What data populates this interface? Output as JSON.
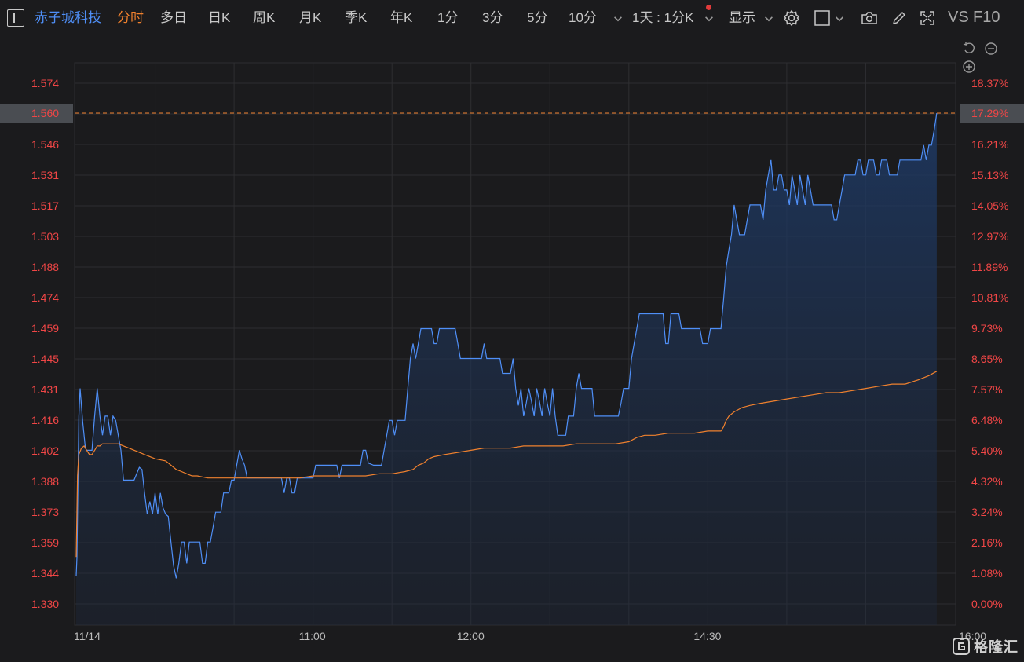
{
  "toolbar": {
    "stock_name": "赤子城科技",
    "active_tab": "分时",
    "tabs": [
      "多日",
      "日K",
      "周K",
      "月K",
      "季K",
      "年K",
      "1分",
      "3分",
      "5分",
      "10分"
    ],
    "period_select": "1天 : 1分K",
    "display_label": "显示",
    "vs_label": "VS",
    "f10_label": "F10"
  },
  "watermark": "格隆汇",
  "colors": {
    "background": "#1b1b1d",
    "price_line": "#4f8ff7",
    "avg_line": "#f0812e",
    "axis_text": "#f04646",
    "grid": "#2e2e31"
  },
  "chart_data": {
    "type": "line",
    "date": "11/14",
    "price_axis": [
      "1.574",
      "1.560",
      "1.546",
      "1.531",
      "1.517",
      "1.503",
      "1.488",
      "1.474",
      "1.459",
      "1.445",
      "1.431",
      "1.416",
      "1.402",
      "1.388",
      "1.373",
      "1.359",
      "1.344",
      "1.330"
    ],
    "pct_axis": [
      "18.37%",
      "17.29%",
      "16.21%",
      "15.13%",
      "14.05%",
      "12.97%",
      "11.89%",
      "10.81%",
      "9.73%",
      "8.65%",
      "7.57%",
      "6.48%",
      "5.40%",
      "4.32%",
      "3.24%",
      "2.16%",
      "1.08%",
      "0.00%"
    ],
    "ylim": [
      1.33,
      1.574
    ],
    "time_labels": [
      {
        "t": 0,
        "label": "11/14"
      },
      {
        "t": 90,
        "label": "11:00"
      },
      {
        "t": 150,
        "label": "12:00"
      },
      {
        "t": 240,
        "label": "14:30"
      },
      {
        "t": 330,
        "label": "16:00"
      }
    ],
    "last_price": "1.560",
    "last_pct": "17.29%",
    "total_minutes": 330,
    "price_series": [
      [
        0,
        1.343
      ],
      [
        0.3,
        1.352
      ],
      [
        1,
        1.418
      ],
      [
        1.5,
        1.431
      ],
      [
        2.5,
        1.415
      ],
      [
        3.5,
        1.403
      ],
      [
        4,
        1.402
      ],
      [
        5,
        1.402
      ],
      [
        6,
        1.402
      ],
      [
        7,
        1.418
      ],
      [
        8,
        1.431
      ],
      [
        9,
        1.418
      ],
      [
        10,
        1.409
      ],
      [
        11,
        1.418
      ],
      [
        12,
        1.418
      ],
      [
        13,
        1.409
      ],
      [
        14,
        1.418
      ],
      [
        15,
        1.416
      ],
      [
        16,
        1.409
      ],
      [
        17,
        1.402
      ],
      [
        18,
        1.388
      ],
      [
        20,
        1.388
      ],
      [
        22,
        1.388
      ],
      [
        24,
        1.394
      ],
      [
        25,
        1.393
      ],
      [
        26,
        1.382
      ],
      [
        27,
        1.372
      ],
      [
        28,
        1.378
      ],
      [
        29,
        1.372
      ],
      [
        30,
        1.382
      ],
      [
        31,
        1.372
      ],
      [
        32,
        1.382
      ],
      [
        33,
        1.375
      ],
      [
        34,
        1.372
      ],
      [
        35,
        1.371
      ],
      [
        36,
        1.359
      ],
      [
        37,
        1.348
      ],
      [
        38,
        1.342
      ],
      [
        39,
        1.349
      ],
      [
        40,
        1.359
      ],
      [
        41,
        1.359
      ],
      [
        42,
        1.349
      ],
      [
        43,
        1.359
      ],
      [
        44,
        1.359
      ],
      [
        45,
        1.359
      ],
      [
        46,
        1.359
      ],
      [
        47,
        1.359
      ],
      [
        48,
        1.349
      ],
      [
        49,
        1.349
      ],
      [
        50,
        1.359
      ],
      [
        51,
        1.359
      ],
      [
        52,
        1.366
      ],
      [
        53,
        1.373
      ],
      [
        54,
        1.373
      ],
      [
        55,
        1.373
      ],
      [
        56,
        1.382
      ],
      [
        57,
        1.382
      ],
      [
        58,
        1.382
      ],
      [
        59,
        1.388
      ],
      [
        60,
        1.388
      ],
      [
        61,
        1.395
      ],
      [
        62,
        1.402
      ],
      [
        63,
        1.398
      ],
      [
        64,
        1.395
      ],
      [
        65,
        1.389
      ],
      [
        70,
        1.389
      ],
      [
        75,
        1.389
      ],
      [
        78,
        1.389
      ],
      [
        79,
        1.382
      ],
      [
        80,
        1.389
      ],
      [
        81,
        1.389
      ],
      [
        82,
        1.382
      ],
      [
        83,
        1.382
      ],
      [
        84,
        1.389
      ],
      [
        86,
        1.389
      ],
      [
        88,
        1.389
      ],
      [
        90,
        1.389
      ],
      [
        91,
        1.395
      ],
      [
        92,
        1.395
      ],
      [
        95,
        1.395
      ],
      [
        96,
        1.395
      ],
      [
        99,
        1.395
      ],
      [
        100,
        1.389
      ],
      [
        101,
        1.395
      ],
      [
        104,
        1.395
      ],
      [
        105,
        1.395
      ],
      [
        108,
        1.395
      ],
      [
        109,
        1.402
      ],
      [
        110,
        1.402
      ],
      [
        111,
        1.396
      ],
      [
        113,
        1.395
      ],
      [
        116,
        1.395
      ],
      [
        117,
        1.402
      ],
      [
        118,
        1.409
      ],
      [
        119,
        1.416
      ],
      [
        120,
        1.416
      ],
      [
        121,
        1.409
      ],
      [
        122,
        1.416
      ],
      [
        123,
        1.416
      ],
      [
        124,
        1.416
      ],
      [
        125,
        1.416
      ],
      [
        126,
        1.431
      ],
      [
        127,
        1.445
      ],
      [
        128,
        1.452
      ],
      [
        129,
        1.445
      ],
      [
        130,
        1.452
      ],
      [
        131,
        1.459
      ],
      [
        132,
        1.459
      ],
      [
        133,
        1.459
      ],
      [
        134,
        1.459
      ],
      [
        135,
        1.459
      ],
      [
        136,
        1.452
      ],
      [
        137,
        1.452
      ],
      [
        138,
        1.459
      ],
      [
        139,
        1.459
      ],
      [
        140,
        1.459
      ],
      [
        141,
        1.459
      ],
      [
        142,
        1.459
      ],
      [
        143,
        1.459
      ],
      [
        144,
        1.459
      ],
      [
        145,
        1.452
      ],
      [
        146,
        1.445
      ],
      [
        147,
        1.445
      ],
      [
        148,
        1.445
      ],
      [
        149,
        1.445
      ],
      [
        150,
        1.445
      ],
      [
        151,
        1.445
      ],
      [
        152,
        1.445
      ],
      [
        153,
        1.445
      ],
      [
        154,
        1.445
      ],
      [
        155,
        1.452
      ],
      [
        156,
        1.445
      ],
      [
        157,
        1.445
      ],
      [
        158,
        1.445
      ],
      [
        159,
        1.445
      ],
      [
        160,
        1.445
      ],
      [
        161,
        1.445
      ],
      [
        162,
        1.438
      ],
      [
        163,
        1.438
      ],
      [
        164,
        1.438
      ],
      [
        165,
        1.438
      ],
      [
        166,
        1.445
      ],
      [
        167,
        1.431
      ],
      [
        168,
        1.423
      ],
      [
        169,
        1.431
      ],
      [
        170,
        1.418
      ],
      [
        171,
        1.424
      ],
      [
        172,
        1.431
      ],
      [
        173,
        1.425
      ],
      [
        174,
        1.418
      ],
      [
        175,
        1.431
      ],
      [
        176,
        1.425
      ],
      [
        177,
        1.418
      ],
      [
        178,
        1.431
      ],
      [
        179,
        1.424
      ],
      [
        180,
        1.418
      ],
      [
        181,
        1.431
      ],
      [
        182,
        1.418
      ],
      [
        183,
        1.409
      ],
      [
        184,
        1.409
      ],
      [
        185,
        1.409
      ],
      [
        186,
        1.409
      ],
      [
        187,
        1.418
      ],
      [
        188,
        1.418
      ],
      [
        189,
        1.418
      ],
      [
        190,
        1.431
      ],
      [
        191,
        1.438
      ],
      [
        192,
        1.431
      ],
      [
        193,
        1.431
      ],
      [
        194,
        1.431
      ],
      [
        195,
        1.431
      ],
      [
        196,
        1.431
      ],
      [
        197,
        1.418
      ],
      [
        198,
        1.418
      ],
      [
        199,
        1.418
      ],
      [
        200,
        1.418
      ],
      [
        201,
        1.418
      ],
      [
        202,
        1.418
      ],
      [
        203,
        1.418
      ],
      [
        204,
        1.418
      ],
      [
        205,
        1.418
      ],
      [
        206,
        1.418
      ],
      [
        207,
        1.424
      ],
      [
        208,
        1.431
      ],
      [
        209,
        1.431
      ],
      [
        210,
        1.431
      ],
      [
        211,
        1.445
      ],
      [
        212,
        1.452
      ],
      [
        213,
        1.459
      ],
      [
        214,
        1.466
      ],
      [
        215,
        1.466
      ],
      [
        216,
        1.466
      ],
      [
        217,
        1.466
      ],
      [
        218,
        1.466
      ],
      [
        219,
        1.466
      ],
      [
        220,
        1.466
      ],
      [
        221,
        1.466
      ],
      [
        222,
        1.466
      ],
      [
        223,
        1.466
      ],
      [
        224,
        1.452
      ],
      [
        225,
        1.452
      ],
      [
        226,
        1.466
      ],
      [
        227,
        1.466
      ],
      [
        228,
        1.466
      ],
      [
        229,
        1.466
      ],
      [
        230,
        1.459
      ],
      [
        231,
        1.459
      ],
      [
        232,
        1.459
      ],
      [
        233,
        1.459
      ],
      [
        234,
        1.459
      ],
      [
        235,
        1.459
      ],
      [
        236,
        1.459
      ],
      [
        237,
        1.459
      ],
      [
        238,
        1.452
      ],
      [
        239,
        1.452
      ],
      [
        240,
        1.452
      ],
      [
        241,
        1.459
      ],
      [
        242,
        1.459
      ],
      [
        243,
        1.459
      ],
      [
        244,
        1.459
      ],
      [
        245,
        1.459
      ],
      [
        246,
        1.473
      ],
      [
        247,
        1.488
      ],
      [
        248,
        1.496
      ],
      [
        249,
        1.503
      ],
      [
        250,
        1.517
      ],
      [
        251,
        1.51
      ],
      [
        252,
        1.503
      ],
      [
        253,
        1.503
      ],
      [
        254,
        1.503
      ],
      [
        255,
        1.51
      ],
      [
        256,
        1.517
      ],
      [
        257,
        1.517
      ],
      [
        258,
        1.517
      ],
      [
        259,
        1.517
      ],
      [
        260,
        1.517
      ],
      [
        261,
        1.51
      ],
      [
        262,
        1.524
      ],
      [
        263,
        1.531
      ],
      [
        264,
        1.538
      ],
      [
        265,
        1.524
      ],
      [
        266,
        1.524
      ],
      [
        267,
        1.531
      ],
      [
        268,
        1.531
      ],
      [
        269,
        1.524
      ],
      [
        270,
        1.524
      ],
      [
        271,
        1.517
      ],
      [
        272,
        1.531
      ],
      [
        273,
        1.524
      ],
      [
        274,
        1.517
      ],
      [
        275,
        1.531
      ],
      [
        276,
        1.524
      ],
      [
        277,
        1.517
      ],
      [
        278,
        1.531
      ],
      [
        279,
        1.524
      ],
      [
        280,
        1.517
      ],
      [
        281,
        1.517
      ],
      [
        282,
        1.517
      ],
      [
        283,
        1.517
      ],
      [
        284,
        1.517
      ],
      [
        285,
        1.517
      ],
      [
        286,
        1.517
      ],
      [
        287,
        1.517
      ],
      [
        288,
        1.51
      ],
      [
        289,
        1.51
      ],
      [
        290,
        1.517
      ],
      [
        291,
        1.524
      ],
      [
        292,
        1.531
      ],
      [
        293,
        1.531
      ],
      [
        294,
        1.531
      ],
      [
        295,
        1.531
      ],
      [
        296,
        1.531
      ],
      [
        297,
        1.538
      ],
      [
        298,
        1.538
      ],
      [
        299,
        1.531
      ],
      [
        300,
        1.531
      ],
      [
        301,
        1.538
      ],
      [
        302,
        1.538
      ],
      [
        303,
        1.538
      ],
      [
        304,
        1.531
      ],
      [
        305,
        1.531
      ],
      [
        306,
        1.538
      ],
      [
        307,
        1.538
      ],
      [
        308,
        1.538
      ],
      [
        309,
        1.531
      ],
      [
        310,
        1.531
      ],
      [
        311,
        1.531
      ],
      [
        312,
        1.531
      ],
      [
        313,
        1.538
      ],
      [
        314,
        1.538
      ],
      [
        315,
        1.538
      ],
      [
        316,
        1.538
      ],
      [
        317,
        1.538
      ],
      [
        318,
        1.538
      ],
      [
        319,
        1.538
      ],
      [
        320,
        1.538
      ],
      [
        321,
        1.538
      ],
      [
        322,
        1.545
      ],
      [
        323,
        1.538
      ],
      [
        324,
        1.545
      ],
      [
        325,
        1.545
      ],
      [
        326,
        1.552
      ],
      [
        327,
        1.56
      ]
    ],
    "avg_series": [
      [
        0,
        1.352
      ],
      [
        0.5,
        1.39
      ],
      [
        1,
        1.4
      ],
      [
        2,
        1.403
      ],
      [
        3,
        1.404
      ],
      [
        4,
        1.402
      ],
      [
        5,
        1.4
      ],
      [
        6,
        1.4
      ],
      [
        7,
        1.402
      ],
      [
        8,
        1.404
      ],
      [
        9,
        1.404
      ],
      [
        10,
        1.405
      ],
      [
        14,
        1.405
      ],
      [
        16,
        1.405
      ],
      [
        18,
        1.404
      ],
      [
        20,
        1.403
      ],
      [
        24,
        1.401
      ],
      [
        26,
        1.4
      ],
      [
        30,
        1.398
      ],
      [
        34,
        1.397
      ],
      [
        36,
        1.395
      ],
      [
        38,
        1.393
      ],
      [
        40,
        1.392
      ],
      [
        42,
        1.391
      ],
      [
        44,
        1.39
      ],
      [
        46,
        1.39
      ],
      [
        50,
        1.389
      ],
      [
        55,
        1.389
      ],
      [
        60,
        1.389
      ],
      [
        65,
        1.389
      ],
      [
        70,
        1.389
      ],
      [
        75,
        1.389
      ],
      [
        80,
        1.389
      ],
      [
        85,
        1.389
      ],
      [
        90,
        1.39
      ],
      [
        95,
        1.39
      ],
      [
        100,
        1.39
      ],
      [
        105,
        1.39
      ],
      [
        110,
        1.39
      ],
      [
        115,
        1.391
      ],
      [
        120,
        1.391
      ],
      [
        125,
        1.392
      ],
      [
        128,
        1.393
      ],
      [
        130,
        1.395
      ],
      [
        132,
        1.396
      ],
      [
        134,
        1.398
      ],
      [
        136,
        1.399
      ],
      [
        140,
        1.4
      ],
      [
        145,
        1.401
      ],
      [
        150,
        1.402
      ],
      [
        155,
        1.403
      ],
      [
        160,
        1.403
      ],
      [
        165,
        1.403
      ],
      [
        170,
        1.404
      ],
      [
        175,
        1.404
      ],
      [
        180,
        1.404
      ],
      [
        185,
        1.404
      ],
      [
        190,
        1.405
      ],
      [
        195,
        1.405
      ],
      [
        200,
        1.405
      ],
      [
        205,
        1.405
      ],
      [
        210,
        1.406
      ],
      [
        213,
        1.408
      ],
      [
        216,
        1.409
      ],
      [
        220,
        1.409
      ],
      [
        225,
        1.41
      ],
      [
        230,
        1.41
      ],
      [
        235,
        1.41
      ],
      [
        240,
        1.411
      ],
      [
        245,
        1.411
      ],
      [
        246,
        1.413
      ],
      [
        247,
        1.416
      ],
      [
        248,
        1.418
      ],
      [
        250,
        1.42
      ],
      [
        253,
        1.422
      ],
      [
        256,
        1.423
      ],
      [
        260,
        1.424
      ],
      [
        265,
        1.425
      ],
      [
        270,
        1.426
      ],
      [
        275,
        1.427
      ],
      [
        280,
        1.428
      ],
      [
        285,
        1.429
      ],
      [
        290,
        1.429
      ],
      [
        295,
        1.43
      ],
      [
        300,
        1.431
      ],
      [
        305,
        1.432
      ],
      [
        310,
        1.433
      ],
      [
        315,
        1.433
      ],
      [
        320,
        1.435
      ],
      [
        324,
        1.437
      ],
      [
        327,
        1.439
      ]
    ]
  }
}
